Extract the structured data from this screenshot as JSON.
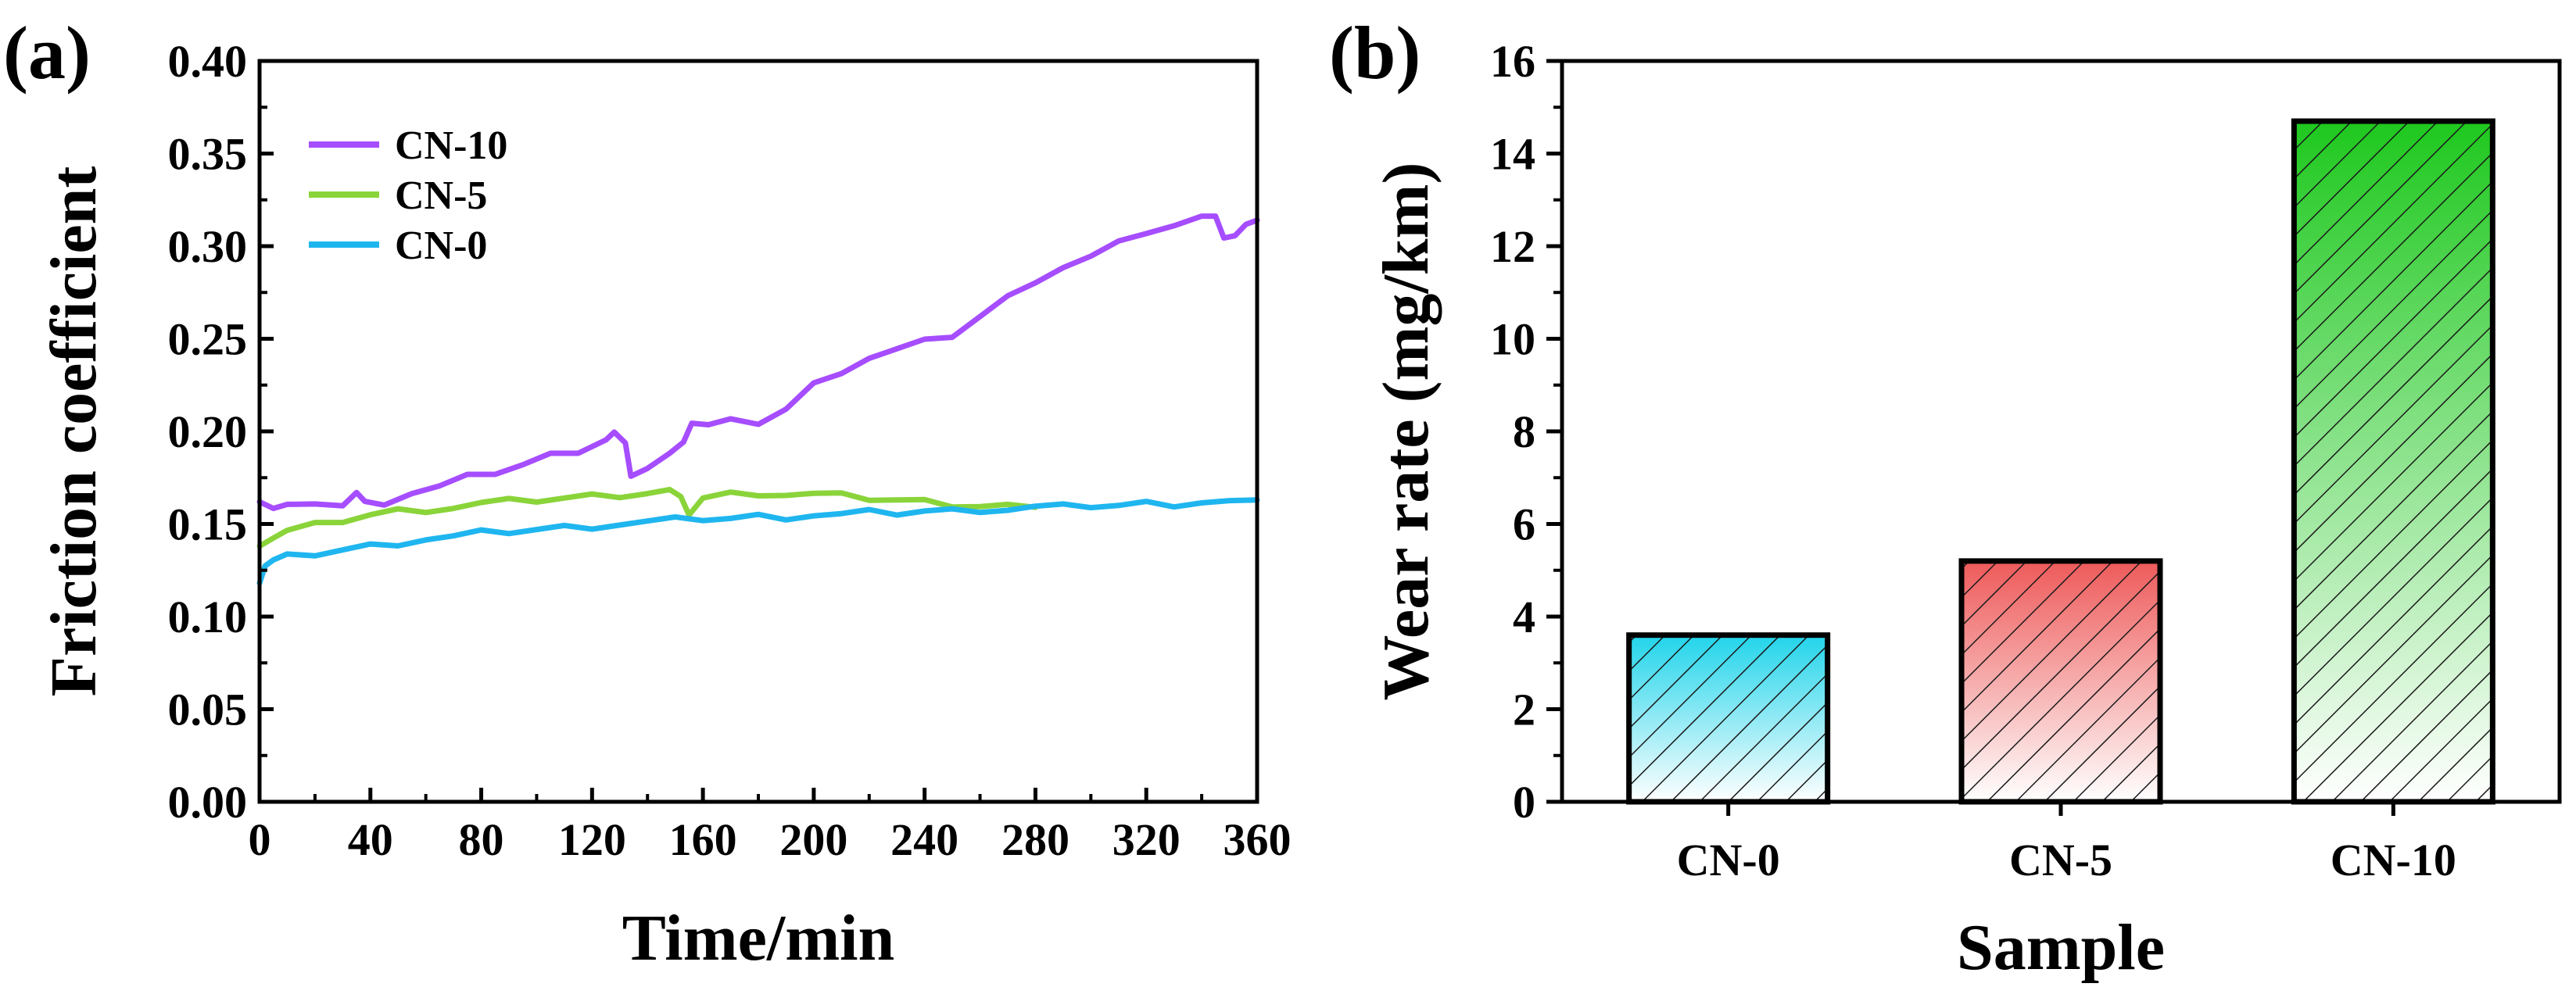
{
  "figure": {
    "panel_a_label": "(a)",
    "panel_b_label": "(b)"
  },
  "chart_data": [
    {
      "type": "line",
      "panel": "(a)",
      "title": "",
      "xlabel": "Time/min",
      "ylabel": "Friction coefficient",
      "xlim": [
        0,
        360
      ],
      "ylim": [
        0,
        0.4
      ],
      "xticks": [
        "0",
        "40",
        "80",
        "120",
        "160",
        "200",
        "240",
        "280",
        "320",
        "360"
      ],
      "yticks": [
        "0.00",
        "0.05",
        "0.10",
        "0.15",
        "0.20",
        "0.25",
        "0.30",
        "0.35",
        "0.40"
      ],
      "legend_position": "top-left",
      "grid": false,
      "series": [
        {
          "name": "CN-10",
          "color": "#a64dff",
          "x": [
            0,
            5,
            10,
            20,
            30,
            35,
            38,
            45,
            55,
            65,
            75,
            85,
            95,
            105,
            115,
            125,
            128,
            132,
            134,
            140,
            148,
            153,
            156,
            162,
            170,
            180,
            190,
            200,
            210,
            220,
            230,
            240,
            250,
            260,
            270,
            280,
            290,
            300,
            310,
            320,
            330,
            340,
            345,
            348,
            352,
            356,
            360
          ],
          "y": [
            0.162,
            0.159,
            0.16,
            0.159,
            0.161,
            0.167,
            0.161,
            0.162,
            0.167,
            0.17,
            0.175,
            0.178,
            0.182,
            0.187,
            0.19,
            0.196,
            0.199,
            0.192,
            0.177,
            0.18,
            0.187,
            0.196,
            0.205,
            0.203,
            0.205,
            0.205,
            0.212,
            0.225,
            0.233,
            0.24,
            0.244,
            0.248,
            0.252,
            0.262,
            0.272,
            0.282,
            0.289,
            0.294,
            0.301,
            0.308,
            0.311,
            0.315,
            0.318,
            0.305,
            0.305,
            0.31,
            0.314
          ]
        },
        {
          "name": "CN-5",
          "color": "#8ad43a",
          "x": [
            0,
            5,
            10,
            20,
            30,
            40,
            50,
            60,
            70,
            80,
            90,
            100,
            110,
            120,
            130,
            140,
            148,
            152,
            155,
            160,
            170,
            180,
            190,
            200,
            210,
            220,
            230,
            240,
            250,
            260,
            270,
            280
          ],
          "y": [
            0.138,
            0.143,
            0.146,
            0.149,
            0.152,
            0.155,
            0.157,
            0.158,
            0.159,
            0.161,
            0.162,
            0.163,
            0.164,
            0.165,
            0.166,
            0.167,
            0.168,
            0.163,
            0.156,
            0.164,
            0.166,
            0.167,
            0.166,
            0.166,
            0.165,
            0.164,
            0.163,
            0.162,
            0.161,
            0.16,
            0.16,
            0.159
          ]
        },
        {
          "name": "CN-0",
          "color": "#1fb6f0",
          "x": [
            0,
            2,
            5,
            10,
            20,
            30,
            40,
            50,
            60,
            70,
            80,
            90,
            100,
            110,
            120,
            130,
            140,
            150,
            160,
            170,
            180,
            190,
            200,
            210,
            220,
            230,
            240,
            250,
            260,
            270,
            280,
            290,
            300,
            310,
            320,
            330,
            340,
            350,
            360
          ],
          "y": [
            0.118,
            0.128,
            0.13,
            0.132,
            0.134,
            0.136,
            0.138,
            0.14,
            0.142,
            0.143,
            0.145,
            0.146,
            0.147,
            0.148,
            0.149,
            0.15,
            0.151,
            0.152,
            0.153,
            0.153,
            0.154,
            0.154,
            0.155,
            0.155,
            0.156,
            0.156,
            0.157,
            0.157,
            0.158,
            0.158,
            0.159,
            0.159,
            0.16,
            0.16,
            0.161,
            0.161,
            0.162,
            0.162,
            0.163
          ]
        }
      ]
    },
    {
      "type": "bar",
      "panel": "(b)",
      "title": "",
      "xlabel": "Sample",
      "ylabel": "Wear rate (mg/km)",
      "ylim": [
        0,
        16
      ],
      "yticks": [
        "0",
        "2",
        "4",
        "6",
        "8",
        "10",
        "12",
        "14",
        "16"
      ],
      "categories": [
        "CN-0",
        "CN-5",
        "CN-10"
      ],
      "values": [
        3.6,
        5.2,
        14.7
      ],
      "colors": [
        "#22d4ea",
        "#ee5a5a",
        "#1ec81e"
      ],
      "fill_pattern": "diagonal hatch with vertical gradient to white",
      "grid": false
    }
  ]
}
